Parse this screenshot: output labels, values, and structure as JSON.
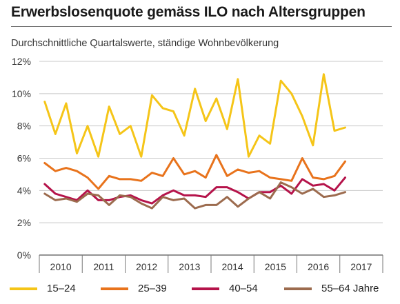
{
  "title": "Erwerbslosenquote gemäss ILO nach Altersgruppen",
  "subtitle": "Durchschnittliche Quartalswerte, ständige Wohnbevölkerung",
  "chart_data": {
    "type": "line",
    "x_unit": "quarter",
    "quarters_start": "2010 Q1",
    "year_labels": [
      "2010",
      "2011",
      "2012",
      "2013",
      "2014",
      "2015",
      "2016",
      "2017"
    ],
    "yticks": [
      "0%",
      "2%",
      "4%",
      "6%",
      "8%",
      "10%",
      "12%"
    ],
    "ylim": [
      0,
      12
    ],
    "grid": "horizontal",
    "legend_position": "bottom",
    "series": [
      {
        "name": "15–24",
        "color": "#f5c518",
        "values": [
          9.5,
          7.5,
          9.4,
          6.3,
          8.0,
          6.1,
          9.2,
          7.5,
          8.0,
          6.1,
          9.9,
          9.1,
          8.9,
          7.4,
          10.3,
          8.3,
          9.7,
          7.8,
          10.9,
          6.1,
          7.4,
          6.9,
          10.8,
          10.0,
          8.6,
          6.8,
          11.2,
          7.7,
          7.9
        ]
      },
      {
        "name": "25–39",
        "color": "#e8731c",
        "values": [
          5.7,
          5.2,
          5.4,
          5.2,
          4.8,
          4.1,
          4.9,
          4.7,
          4.7,
          4.6,
          5.1,
          4.9,
          6.0,
          5.0,
          5.2,
          4.8,
          6.2,
          4.9,
          5.3,
          5.1,
          5.2,
          4.8,
          4.7,
          4.6,
          6.0,
          4.8,
          4.7,
          4.9,
          5.8
        ]
      },
      {
        "name": "40–54",
        "color": "#b5134a",
        "values": [
          4.4,
          3.8,
          3.6,
          3.4,
          4.0,
          3.4,
          3.4,
          3.6,
          3.7,
          3.4,
          3.2,
          3.7,
          4.0,
          3.7,
          3.7,
          3.6,
          4.2,
          4.2,
          3.9,
          3.5,
          3.9,
          3.9,
          4.3,
          3.8,
          4.7,
          4.3,
          4.4,
          4.0,
          4.8
        ]
      },
      {
        "name": "55–64 Jahre",
        "color": "#9c6b4e",
        "values": [
          3.8,
          3.4,
          3.5,
          3.3,
          3.8,
          3.7,
          3.1,
          3.7,
          3.6,
          3.2,
          2.9,
          3.6,
          3.4,
          3.5,
          2.9,
          3.1,
          3.1,
          3.6,
          3.0,
          3.5,
          3.9,
          3.5,
          4.5,
          4.2,
          3.8,
          4.1,
          3.6,
          3.7,
          3.9
        ]
      }
    ]
  }
}
